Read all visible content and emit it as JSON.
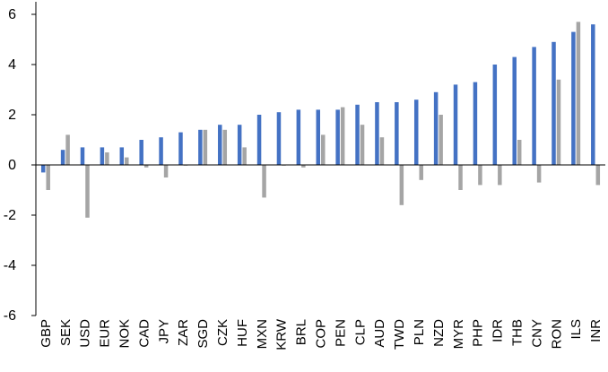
{
  "chart_data": {
    "type": "bar",
    "title": "",
    "xlabel": "",
    "ylabel": "",
    "ylim": [
      -6,
      6
    ],
    "yticks": [
      -6,
      -4,
      -2,
      0,
      2,
      4,
      6
    ],
    "grid": false,
    "categories": [
      "GBP",
      "SEK",
      "USD",
      "EUR",
      "NOK",
      "CAD",
      "JPY",
      "ZAR",
      "SGD",
      "CZK",
      "HUF",
      "MXN",
      "KRW",
      "BRL",
      "COP",
      "PEN",
      "CLP",
      "AUD",
      "TWD",
      "PLN",
      "NZD",
      "MYR",
      "PHP",
      "IDR",
      "THB",
      "CNY",
      "RON",
      "ILS",
      "INR"
    ],
    "series": [
      {
        "color": "#4472C4",
        "values": [
          -0.3,
          0.6,
          0.7,
          0.7,
          0.7,
          1.0,
          1.1,
          1.3,
          1.4,
          1.6,
          1.6,
          2.0,
          2.1,
          2.2,
          2.2,
          2.2,
          2.4,
          2.5,
          2.5,
          2.6,
          2.9,
          3.2,
          3.3,
          4.0,
          4.3,
          4.7,
          4.9,
          5.3,
          5.6
        ]
      },
      {
        "color": "#A5A5A5",
        "values": [
          -1.0,
          1.2,
          -2.1,
          0.5,
          0.3,
          -0.1,
          -0.5,
          0.0,
          1.4,
          1.4,
          0.7,
          -1.3,
          0.0,
          -0.1,
          1.2,
          2.3,
          1.6,
          1.1,
          -1.6,
          -0.6,
          2.0,
          -1.0,
          -0.8,
          -0.8,
          1.0,
          -0.7,
          3.4,
          5.7,
          -0.8
        ]
      }
    ]
  }
}
